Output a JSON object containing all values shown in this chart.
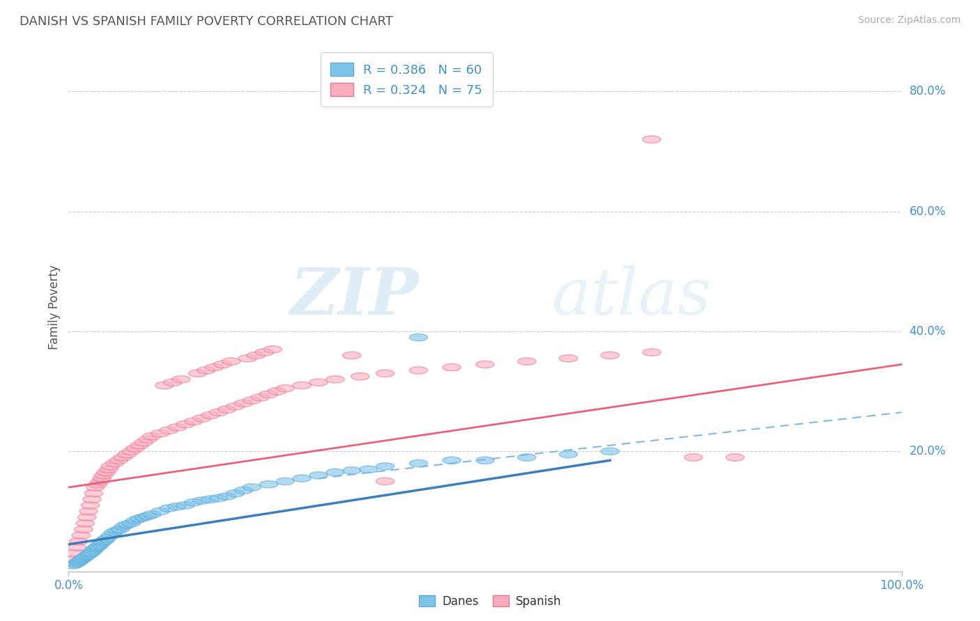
{
  "title": "DANISH VS SPANISH FAMILY POVERTY CORRELATION CHART",
  "source_text": "Source: ZipAtlas.com",
  "ylabel": "Family Poverty",
  "xlim": [
    0,
    1
  ],
  "ylim": [
    0,
    0.88
  ],
  "y_ticks": [
    0.2,
    0.4,
    0.6,
    0.8
  ],
  "y_tick_labels": [
    "20.0%",
    "40.0%",
    "60.0%",
    "80.0%"
  ],
  "danish_color": "#7fc4e8",
  "danish_edge": "#5aabda",
  "spanish_color": "#f9aec0",
  "spanish_edge": "#f07090",
  "danish_line_color": "#3a7ebf",
  "spanish_line_color": "#e8607a",
  "dashed_line_color": "#7fb8e8",
  "background_color": "#ffffff",
  "grid_color": "#cccccc",
  "title_color": "#555555",
  "source_color": "#aaaaaa",
  "ylabel_color": "#555555",
  "tick_label_color": "#4292c6",
  "legend_text_color": "#4292c6",
  "watermark": "ZIPatlas",
  "watermark_color": "#d8eaf8",
  "legend_blue_text": "R = 0.386   N = 60",
  "legend_pink_text": "R = 0.324   N = 75",
  "danish_x": [
    0.005,
    0.008,
    0.01,
    0.012,
    0.014,
    0.016,
    0.018,
    0.02,
    0.022,
    0.024,
    0.026,
    0.028,
    0.03,
    0.032,
    0.034,
    0.036,
    0.038,
    0.04,
    0.042,
    0.044,
    0.046,
    0.05,
    0.054,
    0.058,
    0.062,
    0.066,
    0.07,
    0.075,
    0.08,
    0.085,
    0.09,
    0.095,
    0.1,
    0.11,
    0.12,
    0.13,
    0.14,
    0.15,
    0.16,
    0.17,
    0.18,
    0.19,
    0.2,
    0.21,
    0.22,
    0.24,
    0.26,
    0.28,
    0.3,
    0.32,
    0.34,
    0.36,
    0.38,
    0.42,
    0.46,
    0.5,
    0.55,
    0.6,
    0.65,
    0.42
  ],
  "danish_y": [
    0.01,
    0.012,
    0.014,
    0.016,
    0.018,
    0.02,
    0.022,
    0.024,
    0.026,
    0.028,
    0.03,
    0.032,
    0.035,
    0.038,
    0.04,
    0.042,
    0.045,
    0.048,
    0.05,
    0.052,
    0.055,
    0.06,
    0.065,
    0.068,
    0.07,
    0.075,
    0.078,
    0.08,
    0.085,
    0.088,
    0.09,
    0.092,
    0.095,
    0.1,
    0.105,
    0.108,
    0.11,
    0.115,
    0.118,
    0.12,
    0.122,
    0.125,
    0.13,
    0.135,
    0.14,
    0.145,
    0.15,
    0.155,
    0.16,
    0.165,
    0.168,
    0.17,
    0.175,
    0.18,
    0.185,
    0.185,
    0.19,
    0.195,
    0.2,
    0.39
  ],
  "spanish_x": [
    0.005,
    0.008,
    0.01,
    0.012,
    0.015,
    0.018,
    0.02,
    0.022,
    0.024,
    0.026,
    0.028,
    0.03,
    0.032,
    0.035,
    0.038,
    0.04,
    0.042,
    0.045,
    0.048,
    0.05,
    0.055,
    0.06,
    0.065,
    0.07,
    0.075,
    0.08,
    0.085,
    0.09,
    0.095,
    0.1,
    0.11,
    0.12,
    0.13,
    0.14,
    0.15,
    0.16,
    0.17,
    0.18,
    0.19,
    0.2,
    0.21,
    0.22,
    0.23,
    0.24,
    0.25,
    0.26,
    0.28,
    0.3,
    0.32,
    0.35,
    0.38,
    0.42,
    0.46,
    0.5,
    0.55,
    0.6,
    0.65,
    0.7,
    0.75,
    0.8,
    0.115,
    0.125,
    0.135,
    0.155,
    0.165,
    0.175,
    0.185,
    0.195,
    0.215,
    0.225,
    0.235,
    0.245,
    0.34,
    0.7,
    0.38
  ],
  "spanish_y": [
    0.02,
    0.03,
    0.04,
    0.05,
    0.06,
    0.07,
    0.08,
    0.09,
    0.1,
    0.11,
    0.12,
    0.13,
    0.14,
    0.145,
    0.15,
    0.155,
    0.16,
    0.165,
    0.17,
    0.175,
    0.18,
    0.185,
    0.19,
    0.195,
    0.2,
    0.205,
    0.21,
    0.215,
    0.22,
    0.225,
    0.23,
    0.235,
    0.24,
    0.245,
    0.25,
    0.255,
    0.26,
    0.265,
    0.27,
    0.275,
    0.28,
    0.285,
    0.29,
    0.295,
    0.3,
    0.305,
    0.31,
    0.315,
    0.32,
    0.325,
    0.33,
    0.335,
    0.34,
    0.345,
    0.35,
    0.355,
    0.36,
    0.365,
    0.19,
    0.19,
    0.31,
    0.315,
    0.32,
    0.33,
    0.335,
    0.34,
    0.345,
    0.35,
    0.355,
    0.36,
    0.365,
    0.37,
    0.36,
    0.72,
    0.15
  ]
}
